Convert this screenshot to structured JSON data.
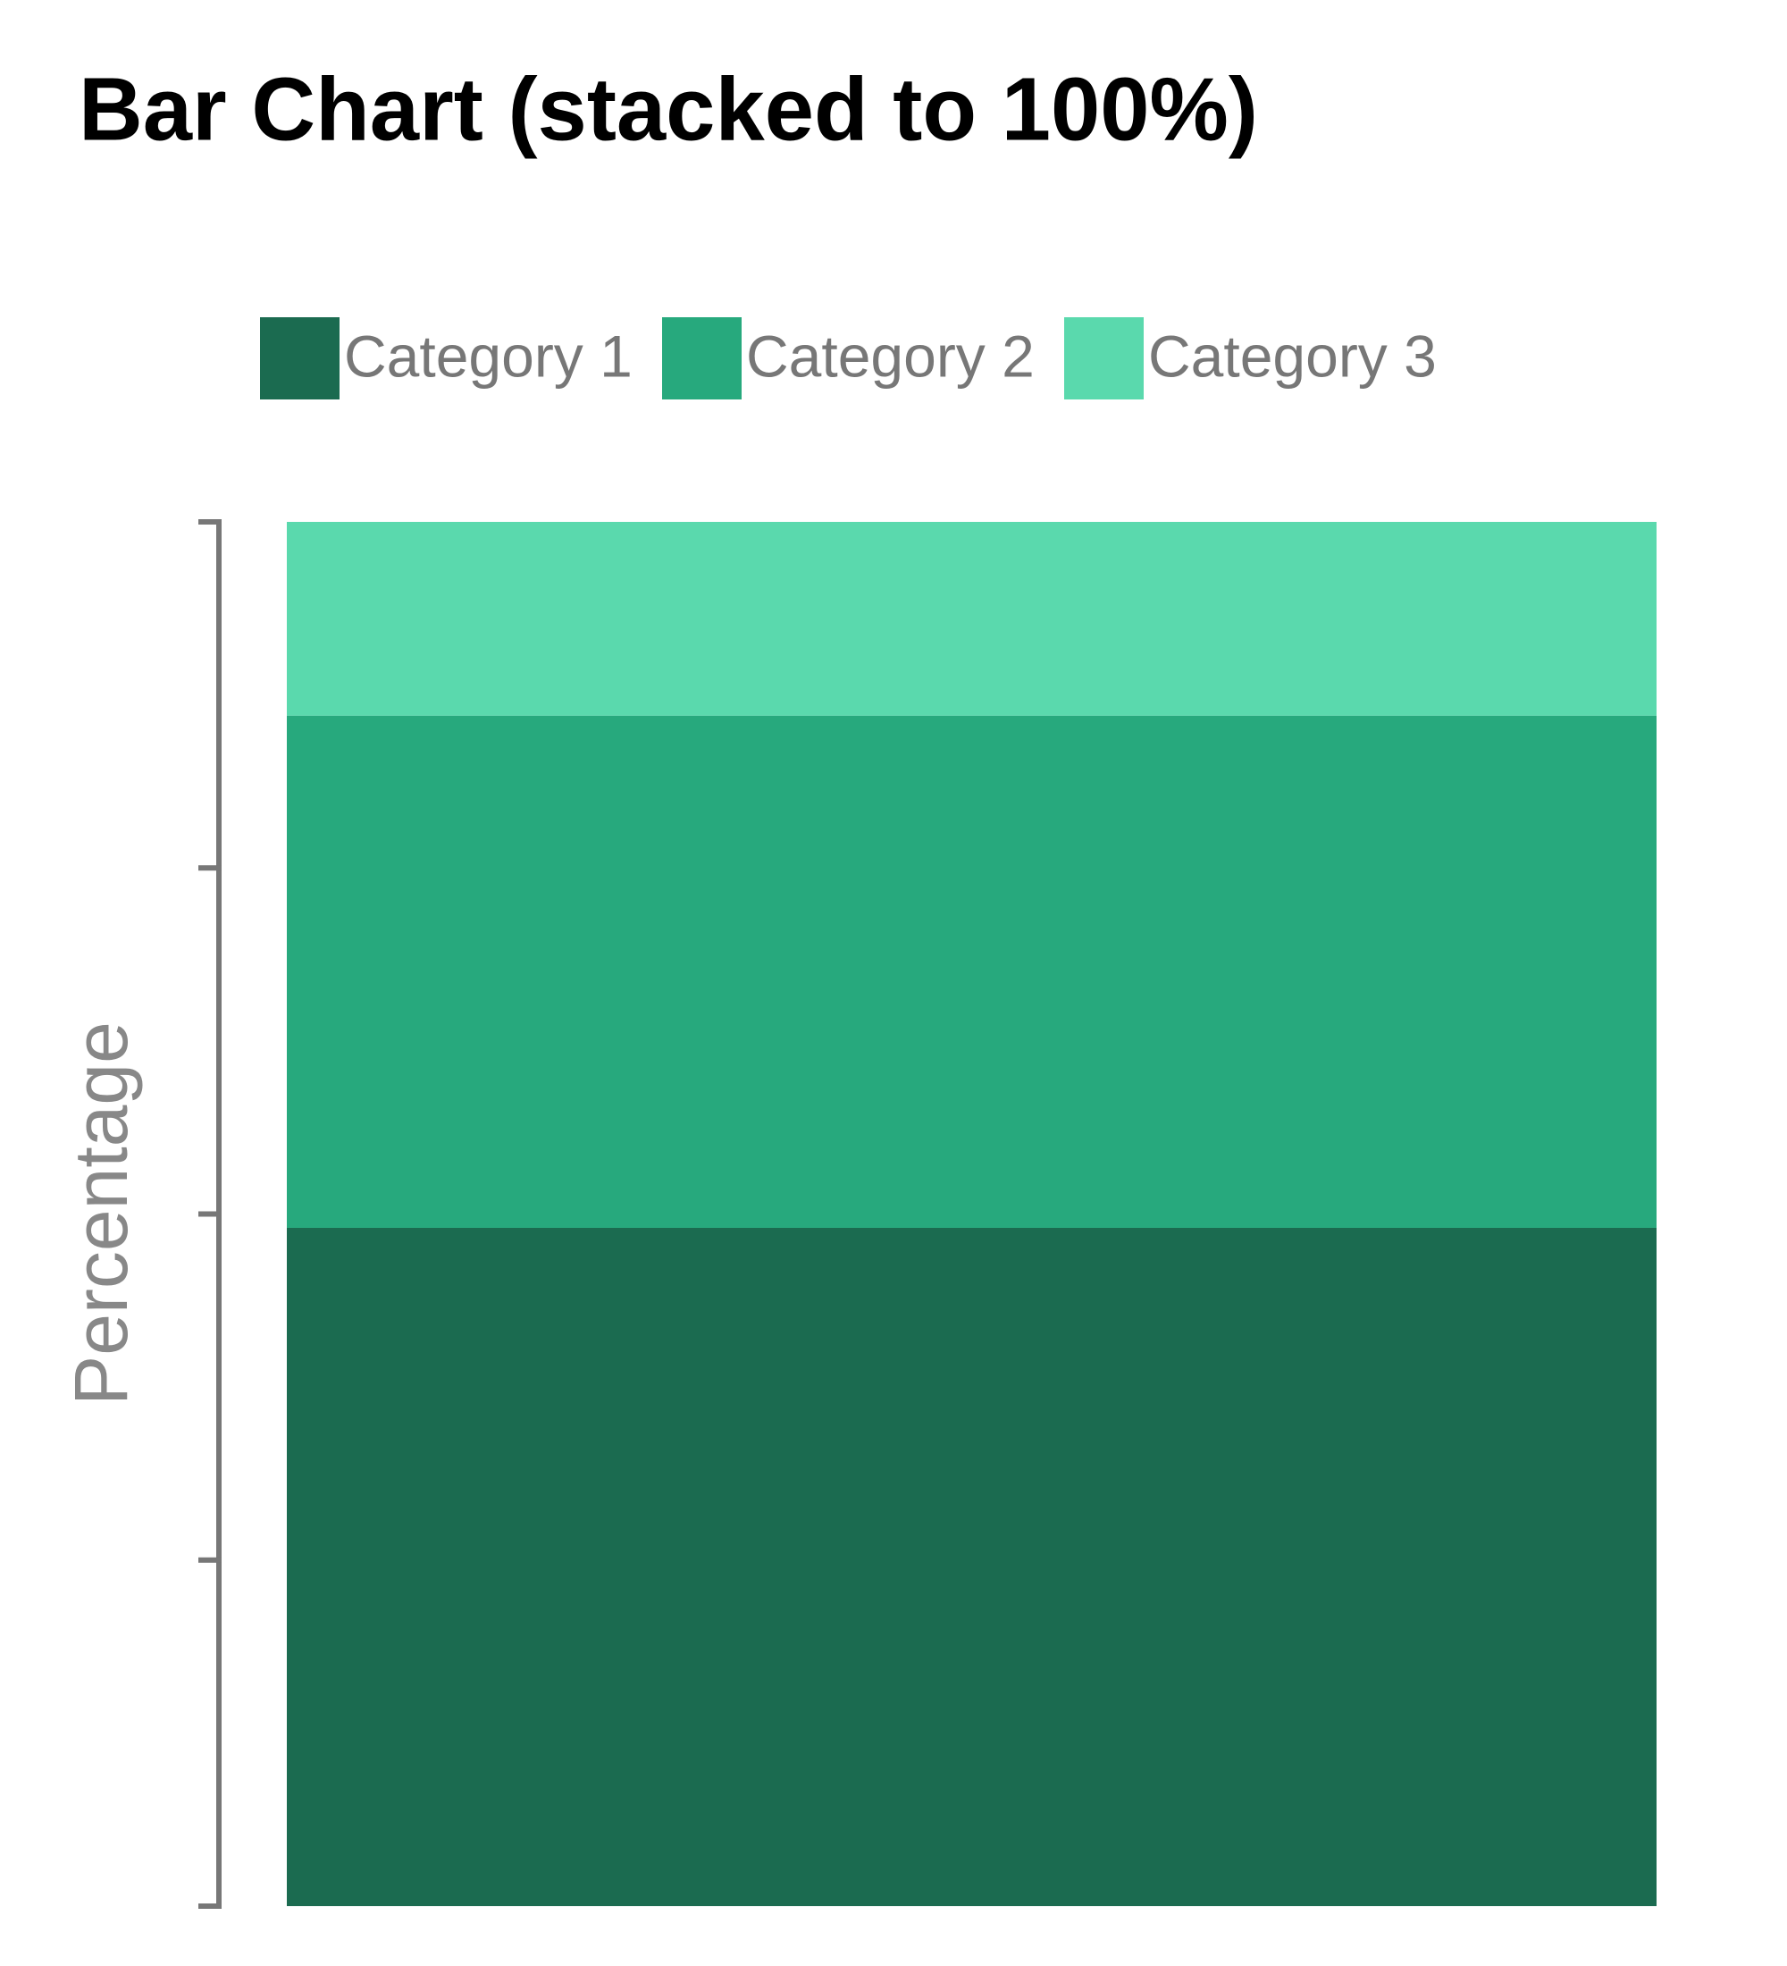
{
  "chart_data": {
    "type": "stacked-bar",
    "title": "Bar Chart (stacked to 100%)",
    "y_label": "Percentage",
    "categories": [
      null
    ],
    "series": [
      {
        "name": "Category 1",
        "color": "#1b6b50",
        "values": [
          49
        ]
      },
      {
        "name": "Category 2",
        "color": "#27a97d",
        "values": [
          37
        ]
      },
      {
        "name": "Category 3",
        "color": "#5ad9ad",
        "values": [
          14
        ]
      }
    ],
    "ylim": [
      0,
      100
    ],
    "yticks": [
      0,
      25,
      50,
      75,
      100
    ]
  }
}
